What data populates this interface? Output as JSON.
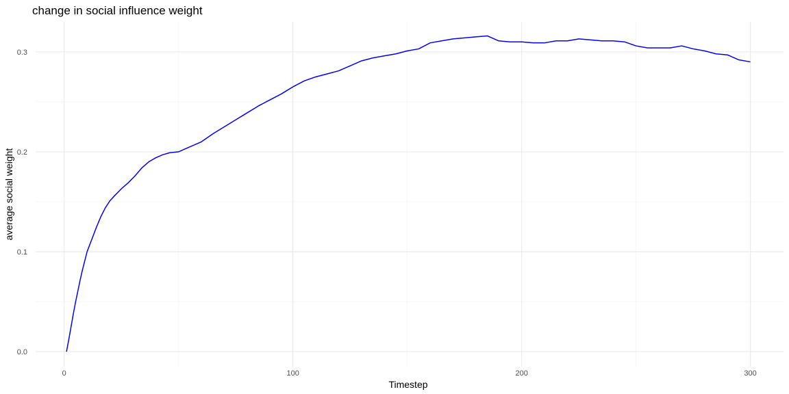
{
  "chart_data": {
    "type": "line",
    "title": "change in social influence weight",
    "xlabel": "Timestep",
    "ylabel": "average social weight",
    "xlim": [
      -12.5,
      314.5
    ],
    "ylim": [
      -0.015,
      0.33
    ],
    "x_ticks": [
      0,
      100,
      200,
      300
    ],
    "x_tick_labels": [
      "0",
      "100",
      "200",
      "300"
    ],
    "x_minor": [
      50,
      150,
      250
    ],
    "y_ticks": [
      0.0,
      0.1,
      0.2,
      0.3
    ],
    "y_tick_labels": [
      "0.0",
      "0.1",
      "0.2",
      "0.3"
    ],
    "y_minor": [
      0.05,
      0.15,
      0.25
    ],
    "grid": true,
    "legend": "none",
    "colors": {
      "line": "#0000ff",
      "grid_major": "#ebebeb",
      "grid_minor": "#f4f4f4"
    },
    "series": [
      {
        "x": [
          1,
          2,
          3,
          4,
          5,
          6,
          7,
          8,
          9,
          10,
          12,
          14,
          16,
          18,
          20,
          22,
          25,
          28,
          31,
          34,
          37,
          40,
          43,
          46,
          50,
          55,
          60,
          65,
          70,
          75,
          80,
          85,
          90,
          95,
          100,
          105,
          110,
          115,
          120,
          125,
          130,
          135,
          140,
          145,
          150,
          155,
          160,
          165,
          170,
          175,
          180,
          185,
          190,
          195,
          200,
          205,
          210,
          215,
          220,
          225,
          230,
          235,
          240,
          245,
          250,
          255,
          260,
          265,
          270,
          275,
          280,
          285,
          290,
          295,
          300
        ],
        "y": [
          0.0,
          0.012,
          0.025,
          0.038,
          0.05,
          0.061,
          0.072,
          0.082,
          0.091,
          0.1,
          0.112,
          0.124,
          0.135,
          0.144,
          0.151,
          0.156,
          0.163,
          0.169,
          0.176,
          0.184,
          0.19,
          0.194,
          0.197,
          0.199,
          0.2,
          0.205,
          0.21,
          0.218,
          0.225,
          0.232,
          0.239,
          0.246,
          0.252,
          0.258,
          0.265,
          0.271,
          0.275,
          0.278,
          0.281,
          0.286,
          0.291,
          0.294,
          0.296,
          0.298,
          0.301,
          0.303,
          0.309,
          0.311,
          0.313,
          0.314,
          0.315,
          0.316,
          0.311,
          0.31,
          0.31,
          0.309,
          0.309,
          0.311,
          0.311,
          0.313,
          0.312,
          0.311,
          0.311,
          0.31,
          0.306,
          0.304,
          0.304,
          0.304,
          0.306,
          0.303,
          0.301,
          0.298,
          0.297,
          0.292,
          0.29
        ]
      }
    ]
  }
}
